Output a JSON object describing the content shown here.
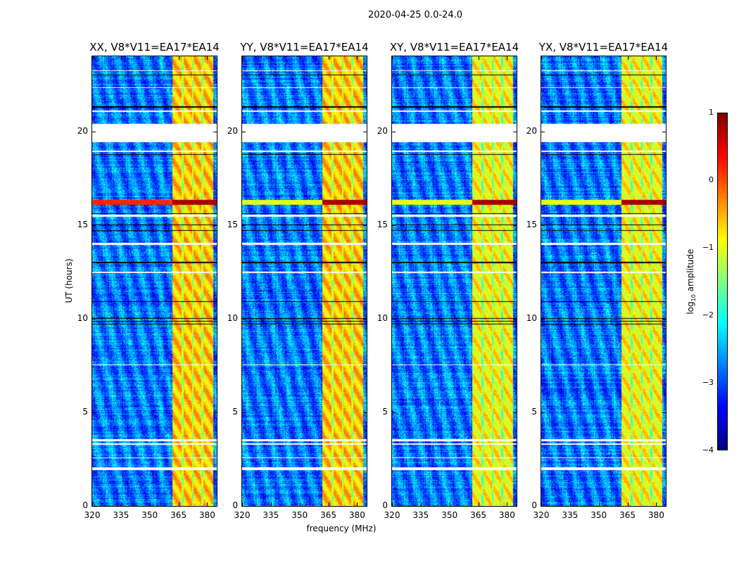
{
  "suptitle": "2020-04-25 0.0-24.0",
  "xlabel": "frequency (MHz)",
  "ylabel": "UT (hours)",
  "colorbar": {
    "label_prefix": "log",
    "label_sub": "10",
    "label_suffix": " amplitude",
    "ticks": [
      "1",
      "0",
      "−1",
      "−2",
      "−3",
      "−4"
    ],
    "range": [
      -4,
      1
    ],
    "colormap": "jet"
  },
  "chart_data": [
    {
      "type": "heatmap",
      "title": "XX, V8*V11=EA17*EA14",
      "xlim": [
        320,
        385
      ],
      "ylim": [
        0,
        24
      ],
      "rfi_strong_line_hour": 16.2
    },
    {
      "type": "heatmap",
      "title": "YY, V8*V11=EA17*EA14",
      "xlim": [
        320,
        385
      ],
      "ylim": [
        0,
        24
      ],
      "rfi_strong_line_hour": 16.2
    },
    {
      "type": "heatmap",
      "title": "XY, V8*V11=EA17*EA14",
      "xlim": [
        320,
        385
      ],
      "ylim": [
        0,
        24
      ],
      "rfi_strong_line_hour": 16.2
    },
    {
      "type": "heatmap",
      "title": "YX, V8*V11=EA17*EA14",
      "xlim": [
        320,
        385
      ],
      "ylim": [
        0,
        24
      ],
      "rfi_strong_line_hour": 16.2
    }
  ],
  "common": {
    "xticks": [
      "320",
      "335",
      "350",
      "365",
      "380"
    ],
    "xtick_values": [
      320,
      335,
      350,
      365,
      380
    ],
    "yticks": [
      "0",
      "5",
      "10",
      "15",
      "20"
    ],
    "ytick_values": [
      0,
      5,
      10,
      15,
      20
    ],
    "background_log_amp": -2.8,
    "rfi_band_mhz": [
      362,
      383
    ],
    "rfi_band_log_amp": -0.6,
    "flagged_hours": [
      [
        19.4,
        20.4
      ],
      [
        1.9,
        2.05
      ],
      [
        3.25,
        3.35
      ],
      [
        3.45,
        3.55
      ],
      [
        13.95,
        14.05
      ],
      [
        15.45,
        15.55
      ],
      [
        2.55,
        2.6
      ],
      [
        7.5,
        7.55
      ],
      [
        12.45,
        12.5
      ],
      [
        21.05,
        21.1
      ],
      [
        22.3,
        22.35
      ],
      [
        23.2,
        23.25
      ],
      [
        18.9,
        18.95
      ]
    ],
    "zero_hours": [
      9.7,
      9.85,
      10.0,
      10.9,
      13.0,
      14.7,
      15.0,
      15.6,
      18.75,
      21.3,
      23.0
    ]
  }
}
